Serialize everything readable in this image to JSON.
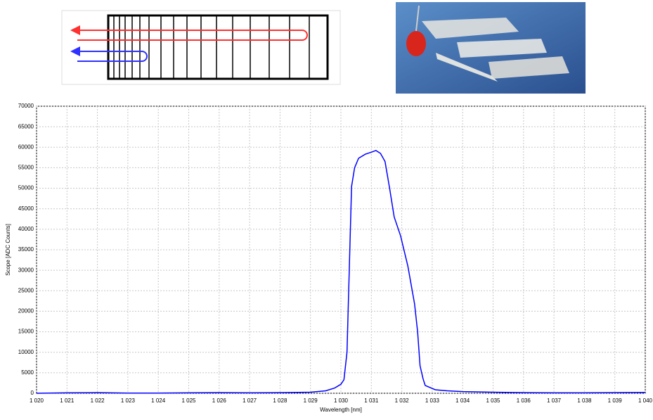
{
  "chart_data": {
    "type": "line",
    "ylabel": "Scope [ADC Counts]",
    "xlabel": "Wavelength [nm]",
    "x": [
      1020,
      1021,
      1022,
      1023,
      1024,
      1025,
      1026,
      1027,
      1028,
      1029,
      1029.5,
      1029.8,
      1030,
      1030.1,
      1030.2,
      1030.35,
      1030.45,
      1030.58,
      1030.8,
      1031,
      1031.15,
      1031.3,
      1031.45,
      1031.6,
      1031.75,
      1031.96,
      1032.2,
      1032.42,
      1032.52,
      1032.6,
      1032.7,
      1032.77,
      1033.1,
      1033.5,
      1034,
      1035,
      1036,
      1037,
      1038,
      1039,
      1040
    ],
    "values": [
      0,
      100,
      150,
      50,
      50,
      100,
      150,
      100,
      150,
      250,
      600,
      1300,
      2200,
      3300,
      10000,
      50400,
      55000,
      57300,
      58300,
      58800,
      59200,
      58500,
      56500,
      50000,
      43000,
      38400,
      31000,
      21800,
      15000,
      6700,
      3500,
      1900,
      860,
      600,
      400,
      250,
      150,
      100,
      100,
      150,
      200
    ],
    "color": "#0000ff",
    "xlim": [
      1020,
      1040
    ],
    "xticks": [
      {
        "value": 1020,
        "label": "1 020"
      },
      {
        "value": 1021,
        "label": "1 021"
      },
      {
        "value": 1022,
        "label": "1 022"
      },
      {
        "value": 1023,
        "label": "1 023"
      },
      {
        "value": 1024,
        "label": "1 024"
      },
      {
        "value": 1025,
        "label": "1 025"
      },
      {
        "value": 1026,
        "label": "1 026"
      },
      {
        "value": 1027,
        "label": "1 027"
      },
      {
        "value": 1028,
        "label": "1 028"
      },
      {
        "value": 1029,
        "label": "1 029"
      },
      {
        "value": 1030,
        "label": "1 030"
      },
      {
        "value": 1031,
        "label": "1 031"
      },
      {
        "value": 1032,
        "label": "1 032"
      },
      {
        "value": 1033,
        "label": "1 033"
      },
      {
        "value": 1034,
        "label": "1 034"
      },
      {
        "value": 1035,
        "label": "1 035"
      },
      {
        "value": 1036,
        "label": "1 036"
      },
      {
        "value": 1037,
        "label": "1 037"
      },
      {
        "value": 1038,
        "label": "1 038"
      },
      {
        "value": 1039,
        "label": "1 039"
      },
      {
        "value": 1040,
        "label": "1 040"
      }
    ],
    "ylim": [
      0,
      70000
    ],
    "yticks": [
      0,
      5000,
      10000,
      15000,
      20000,
      25000,
      30000,
      35000,
      40000,
      45000,
      50000,
      55000,
      60000,
      65000,
      70000
    ],
    "grid": true
  }
}
